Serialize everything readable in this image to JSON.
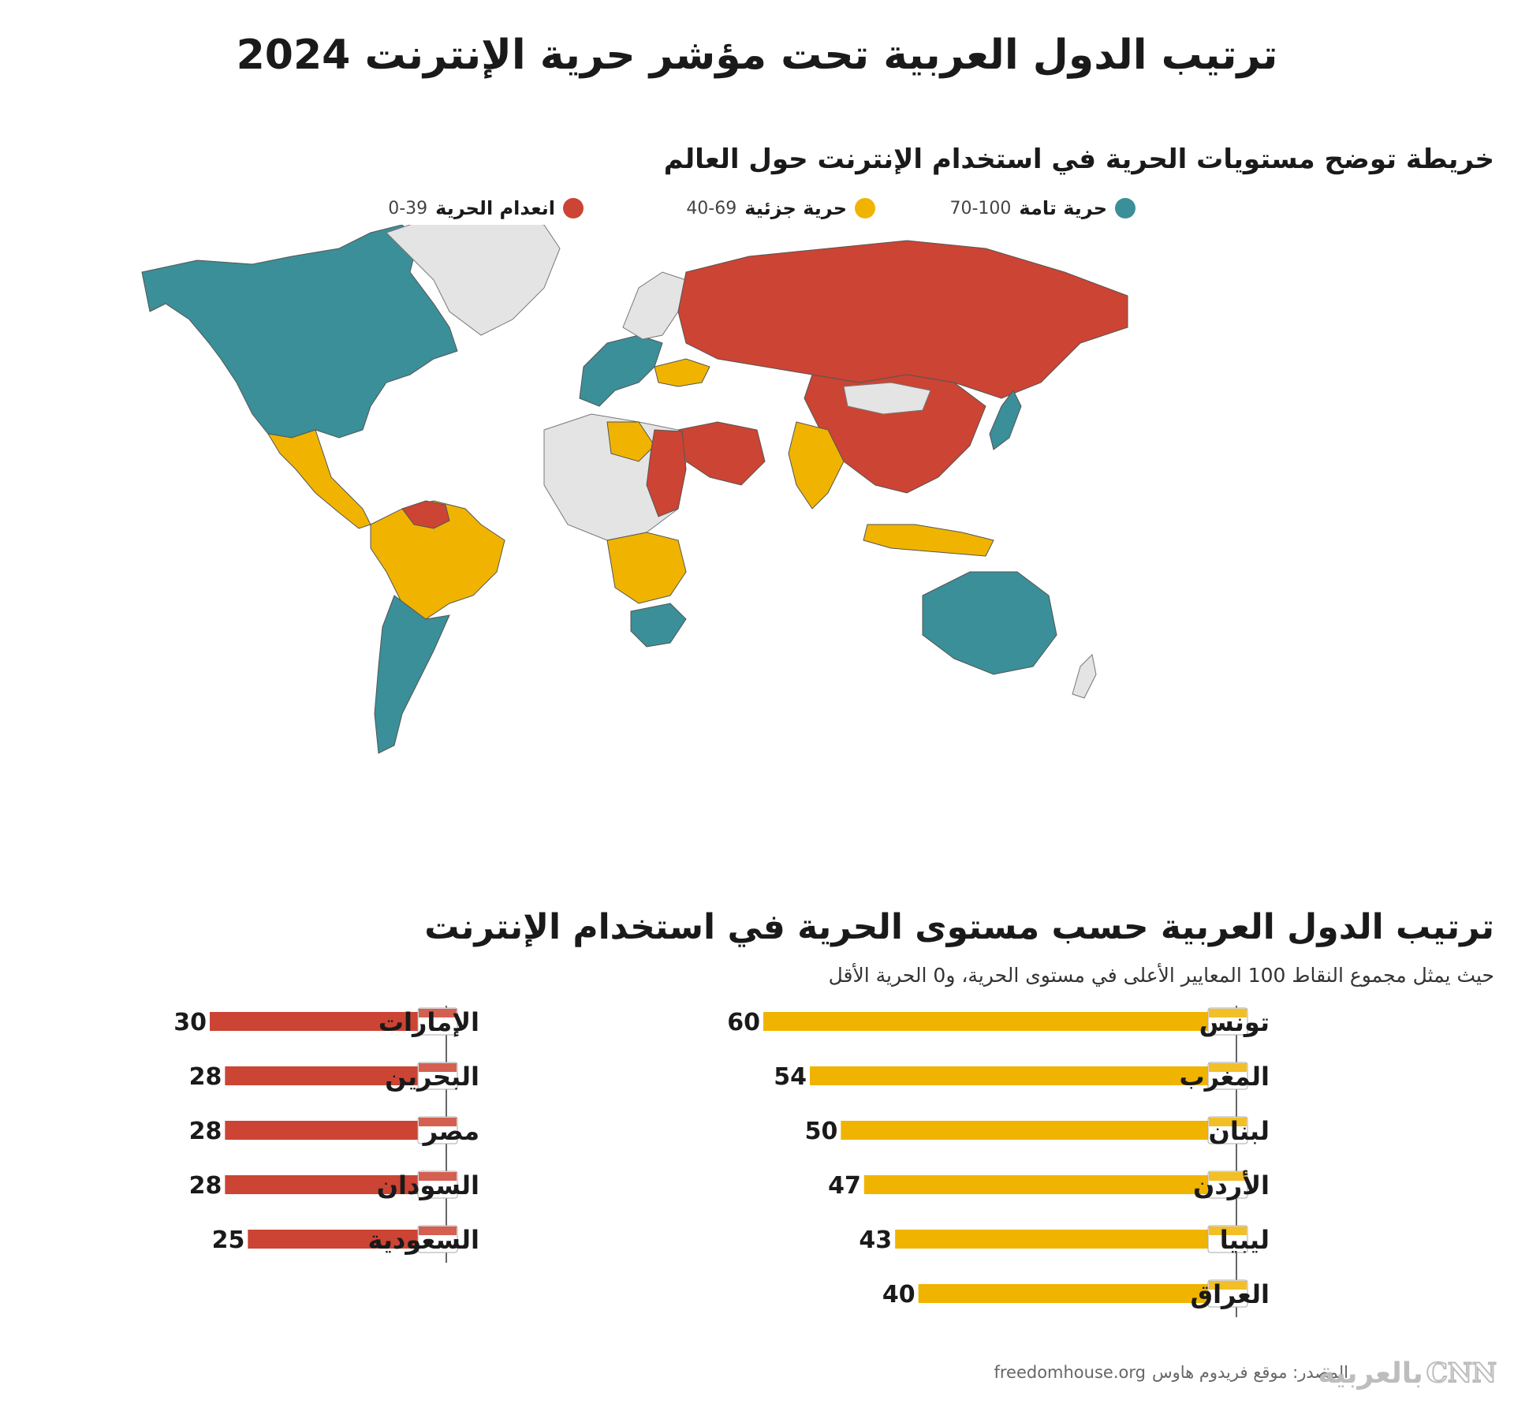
{
  "title": "ترتيب الدول العربية تحت مؤشر حرية الإنترنت 2024",
  "map": {
    "title": "خريطة توضح مستويات الحرية في استخدام الإنترنت حول العالم",
    "legend": [
      {
        "label": "حرية تامة",
        "range": "70-100",
        "color": "#3a8f98"
      },
      {
        "label": "حرية جزئية",
        "range": "40-69",
        "color": "#f0b400"
      },
      {
        "label": "انعدام الحرية",
        "range": "0-39",
        "color": "#cc4434"
      }
    ]
  },
  "ranking": {
    "title": "ترتيب الدول العربية حسب مستوى الحرية في استخدام الإنترنت",
    "subtitle": "حيث يمثل مجموع النقاط 100 المعايير الأعلى في مستوى الحرية، و0 الحرية الأقل"
  },
  "chart_data": {
    "type": "bar",
    "orientation": "horizontal",
    "groups": [
      {
        "color": "#f0b400",
        "items": [
          {
            "name": "تونس",
            "value": 60
          },
          {
            "name": "المغرب",
            "value": 54
          },
          {
            "name": "لبنان",
            "value": 50
          },
          {
            "name": "الأردن",
            "value": 47
          },
          {
            "name": "ليبيا",
            "value": 43
          },
          {
            "name": "العراق",
            "value": 40
          }
        ]
      },
      {
        "color": "#cc4434",
        "items": [
          {
            "name": "الإمارات",
            "value": 30
          },
          {
            "name": "البحرين",
            "value": 28
          },
          {
            "name": "مصر",
            "value": 28
          },
          {
            "name": "السودان",
            "value": 28
          },
          {
            "name": "السعودية",
            "value": 25
          }
        ]
      }
    ]
  },
  "footer": {
    "source_label": "المصدر: موقع فريدوم هاوس",
    "source_url": "freedomhouse.org"
  },
  "logo": {
    "arabic": "بالعربية",
    "latin": "CNN"
  }
}
